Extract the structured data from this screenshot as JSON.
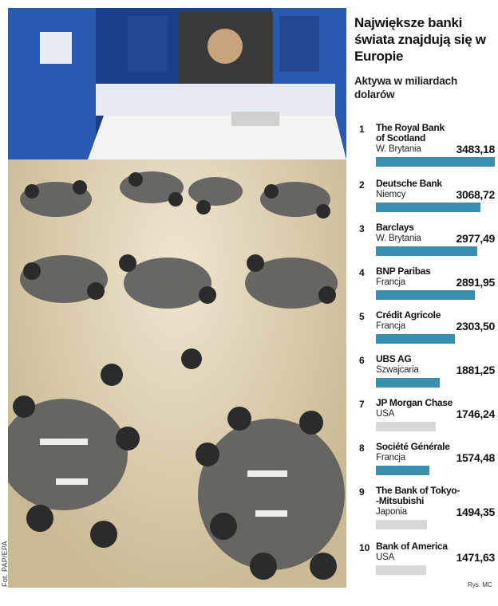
{
  "credit": "Fot. PAP/EPA",
  "source": "Rys. MC",
  "colors": {
    "bar_eu": "#3b8fae",
    "bar_other": "#d8d8d8",
    "photo_floor": "#d9cdb5",
    "photo_stage": "#1c3f8a"
  },
  "chart_data": {
    "type": "bar",
    "title": "Największe banki świata znajdują się w Europie",
    "subtitle": "Aktywa w miliardach dolarów",
    "series": [
      {
        "rank": "1",
        "bank": "The Royal Bank of Scotland",
        "country": "W. Brytania",
        "value": 3483.18,
        "label": "3483,18",
        "highlight": true
      },
      {
        "rank": "2",
        "bank": "Deutsche Bank",
        "country": "Niemcy",
        "value": 3068.72,
        "label": "3068,72",
        "highlight": true
      },
      {
        "rank": "3",
        "bank": "Barclays",
        "country": "W. Brytania",
        "value": 2977.49,
        "label": "2977,49",
        "highlight": true
      },
      {
        "rank": "4",
        "bank": "BNP Paribas",
        "country": "Francja",
        "value": 2891.95,
        "label": "2891,95",
        "highlight": true
      },
      {
        "rank": "5",
        "bank": "Crédit Agricole",
        "country": "Francja",
        "value": 2303.5,
        "label": "2303,50",
        "highlight": true
      },
      {
        "rank": "6",
        "bank": "UBS AG",
        "country": "Szwajcaria",
        "value": 1881.25,
        "label": "1881,25",
        "highlight": true
      },
      {
        "rank": "7",
        "bank": "JP Morgan Chase",
        "country": "USA",
        "value": 1746.24,
        "label": "1746,24",
        "highlight": false
      },
      {
        "rank": "8",
        "bank": "Société Générale",
        "country": "Francja",
        "value": 1574.48,
        "label": "1574,48",
        "highlight": true
      },
      {
        "rank": "9",
        "bank": "The Bank of Tokyo-\n-Mitsubishi",
        "country": "Japonia",
        "value": 1494.35,
        "label": "1494,35",
        "highlight": false
      },
      {
        "rank": "10",
        "bank": "Bank of America",
        "country": "USA",
        "value": 1471.63,
        "label": "1471,63",
        "highlight": false
      }
    ],
    "xlim": [
      0,
      3483.18
    ]
  }
}
